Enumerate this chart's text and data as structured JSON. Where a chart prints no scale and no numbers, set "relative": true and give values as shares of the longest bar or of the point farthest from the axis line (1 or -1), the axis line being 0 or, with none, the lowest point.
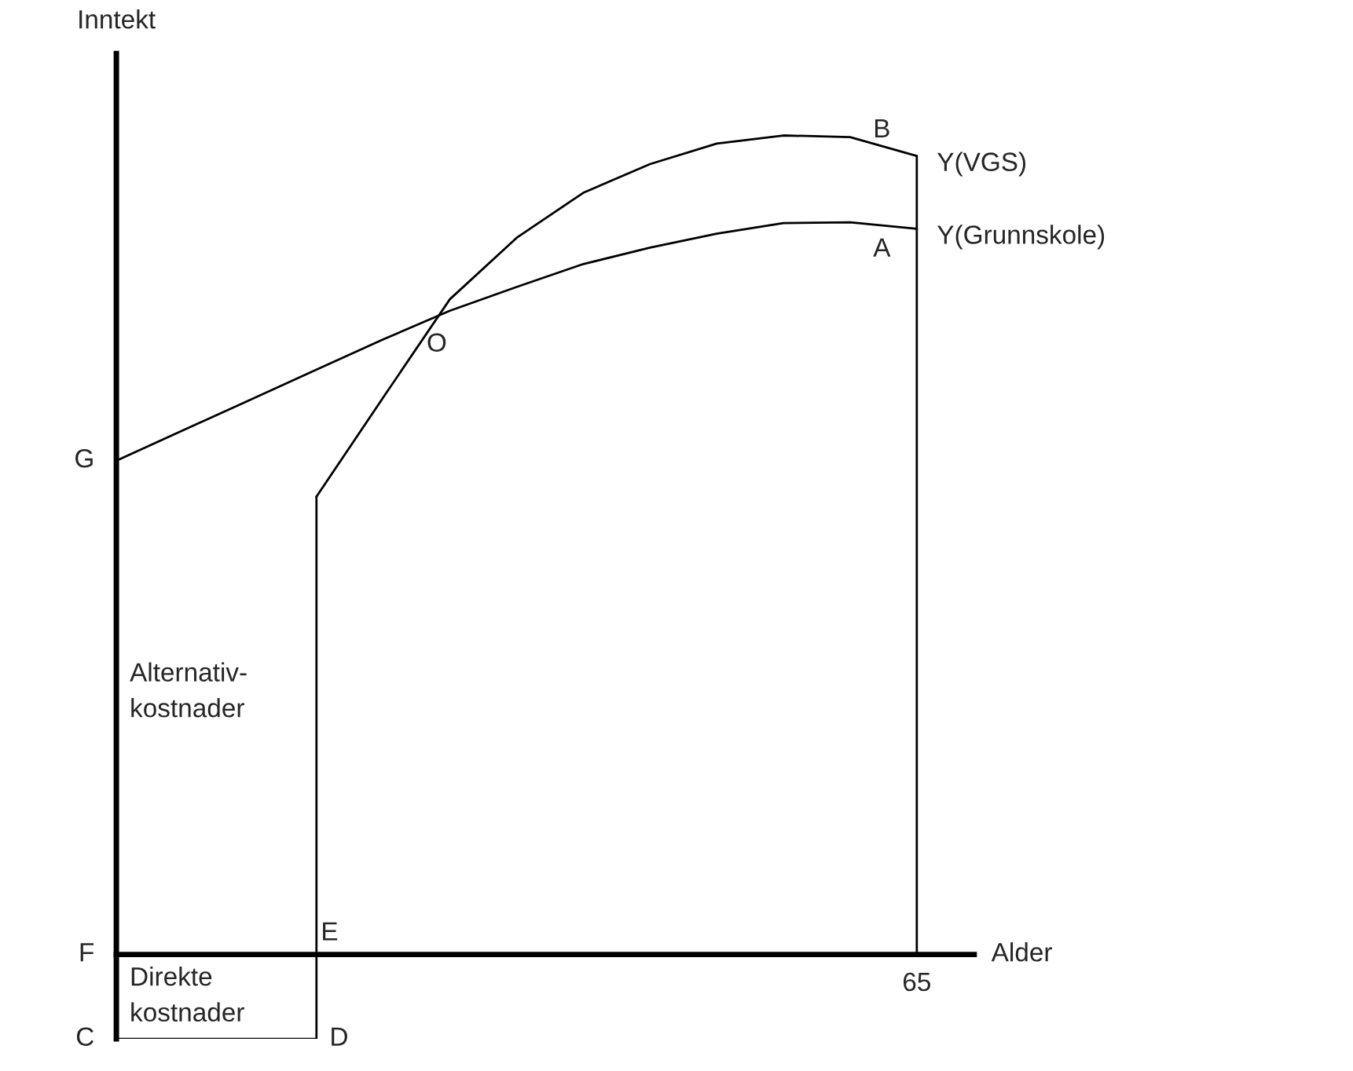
{
  "chart_data": {
    "type": "line",
    "relative": true,
    "xlabel": "Alder",
    "ylabel": "Inntekt",
    "marker": "none",
    "line_style": "solid",
    "categories": [
      null,
      null,
      null,
      null,
      null,
      null,
      null,
      null,
      null,
      null,
      null,
      null,
      null
    ],
    "series": [
      {
        "name": "Y(VGS)",
        "color": "#000000",
        "values": [
          null,
          null,
          null,
          0.559,
          0.68,
          0.8,
          0.875,
          0.93,
          0.965,
          0.99,
          1.0,
          0.998,
          0.975
        ]
      },
      {
        "name": "Y(Grunnskole)",
        "color": "#000000",
        "values": [
          0.603,
          0.64,
          0.677,
          0.714,
          0.751,
          0.786,
          0.815,
          0.843,
          0.863,
          0.88,
          0.893,
          0.894,
          0.886
        ]
      },
      {
        "color": "#000000",
        "values": [
          -0.103,
          -0.103,
          -0.103,
          -0.103,
          null,
          null,
          null,
          null,
          null,
          null,
          null,
          null,
          null
        ]
      }
    ],
    "annotations": [
      "G",
      "O",
      "B",
      "A",
      "E",
      "F",
      "C",
      "D",
      "65",
      "Alternativ-\nkostnader",
      "Direkte\nkostnader"
    ]
  }
}
